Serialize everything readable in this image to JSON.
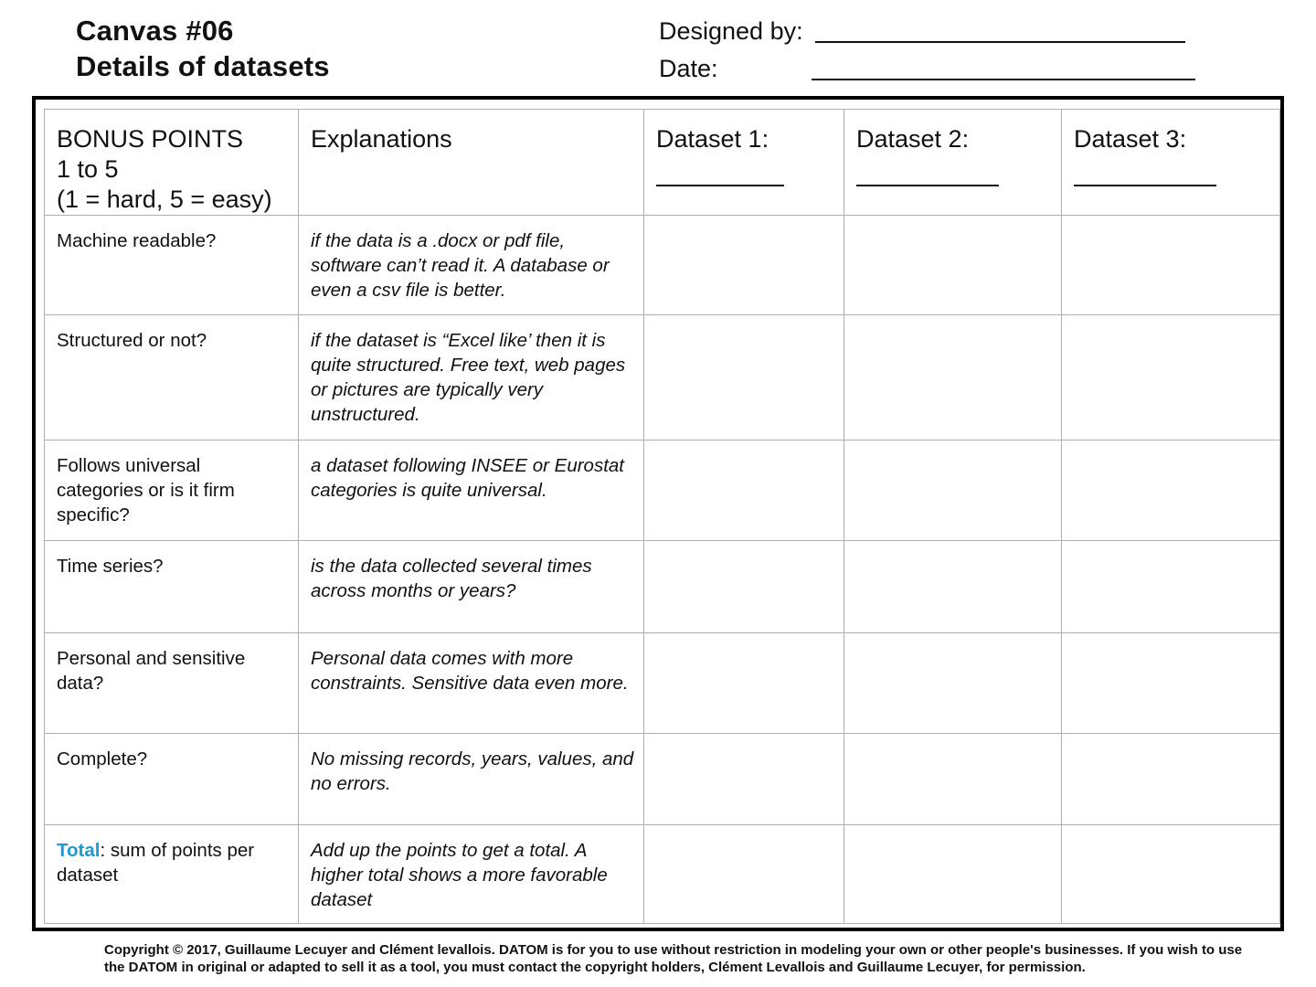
{
  "header": {
    "title_line1": "Canvas #06",
    "title_line2": "Details of datasets",
    "designed_by_label": "Designed by:",
    "date_label": "Date:"
  },
  "table": {
    "headers": {
      "bonus_line1": "BONUS POINTS",
      "bonus_line2": "1 to 5",
      "bonus_line3": "(1 = hard, 5 = easy)",
      "explanations": "Explanations",
      "dataset1": "Dataset 1:",
      "dataset2": "Dataset 2:",
      "dataset3": "Dataset 3:"
    },
    "rows": [
      {
        "criterion": "Machine readable?",
        "explanation": "if the data is a .docx or pdf file, software can’t read it. A database or even a csv file is better."
      },
      {
        "criterion": "Structured or not?",
        "explanation": "if the dataset is “Excel like’ then it is quite structured.  Free text, web pages or pictures are typically very unstructured."
      },
      {
        "criterion": "Follows universal categories or is it firm specific?",
        "explanation": "a dataset following INSEE or Eurostat categories is quite universal."
      },
      {
        "criterion": "Time series?",
        "explanation": "is the data collected several times across months or years?"
      },
      {
        "criterion": "Personal and sensitive data?",
        "explanation": "Personal data comes with more constraints. Sensitive data even more."
      },
      {
        "criterion": "Complete?",
        "explanation": "No missing records, years, values, and no errors."
      }
    ],
    "total_row": {
      "keyword": "Total",
      "criterion_rest": ": sum of points per dataset",
      "explanation": "Add up the points to get a total. A higher total shows a more favorable dataset"
    }
  },
  "footer": {
    "copyright": "Copyright © 2017, Guillaume Lecuyer and Clément levallois. DATOM is for you to use without restriction in modeling your own or other people's businesses. If you wish to use the DATOM in original or adapted to sell it as a tool, you must contact the copyright holders, Clément Levallois and Guillaume Lecuyer, for permission."
  },
  "colors": {
    "total_accent": "#1a9bd7",
    "grid_line": "#b0b0b0",
    "frame": "#000000"
  }
}
